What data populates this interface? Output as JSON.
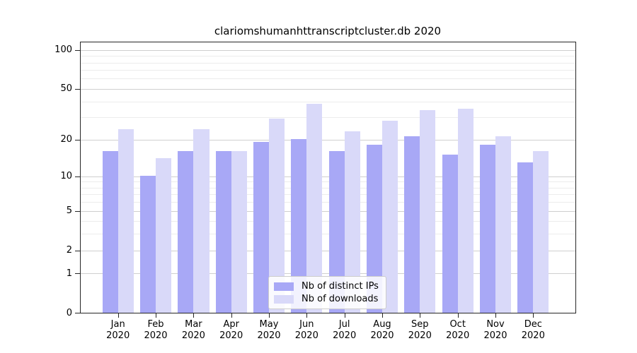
{
  "title": "clariomshumanhttranscriptcluster.db 2020",
  "chart_data": {
    "type": "bar",
    "title": "clariomshumanhttranscriptcluster.db 2020",
    "categories": [
      "Jan",
      "Feb",
      "Mar",
      "Apr",
      "May",
      "Jun",
      "Jul",
      "Aug",
      "Sep",
      "Oct",
      "Nov",
      "Dec"
    ],
    "x_tick_second_line": "2020",
    "series": [
      {
        "name": "Nb of distinct IPs",
        "color": "#a8a8f6",
        "values": [
          16,
          10,
          16,
          16,
          19,
          20,
          16,
          18,
          21,
          15,
          18,
          13
        ]
      },
      {
        "name": "Nb of downloads",
        "color": "#d9d9f9",
        "values": [
          24,
          14,
          24,
          16,
          29,
          38,
          23,
          28,
          34,
          35,
          21,
          16
        ]
      }
    ],
    "y_axis": {
      "scale": "log1p",
      "ticks": [
        0,
        1,
        2,
        5,
        10,
        20,
        50,
        100
      ],
      "minor_gridlines": [
        3,
        4,
        6,
        7,
        8,
        9,
        30,
        40,
        60,
        70,
        80,
        90
      ],
      "ylim": [
        0,
        100
      ]
    },
    "xlabel": "",
    "ylabel": "",
    "grid": true,
    "legend_position": "bottom-center"
  },
  "legend": {
    "items": [
      {
        "label": "Nb of distinct IPs"
      },
      {
        "label": "Nb of downloads"
      }
    ]
  },
  "colors": {
    "ips_bar": "#a8a8f6",
    "downloads_bar": "#d9d9f9",
    "grid_major": "#cfcfcf",
    "grid_minor": "#ececec",
    "axis": "#262626",
    "background": "#ffffff"
  }
}
